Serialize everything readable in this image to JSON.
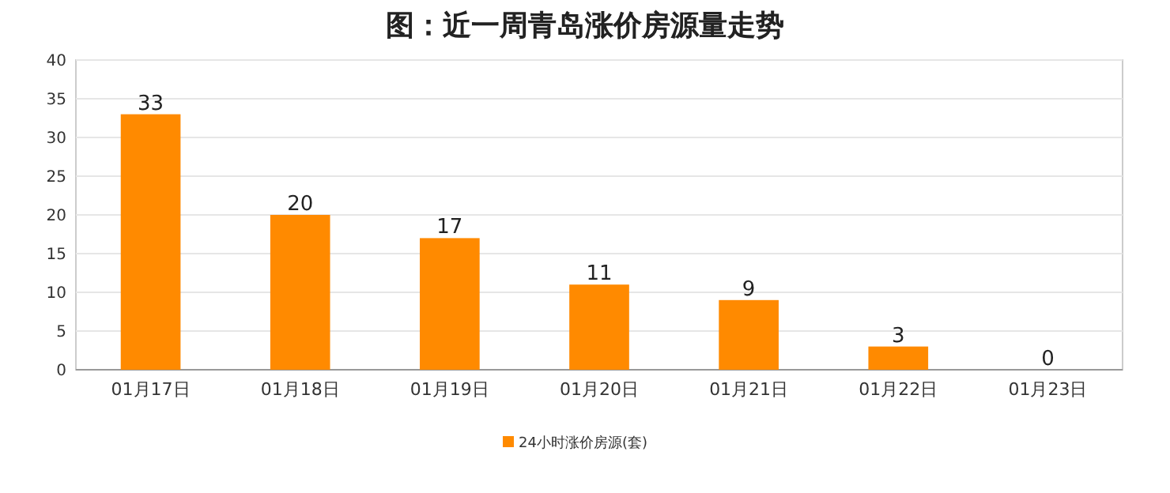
{
  "chart_data": {
    "type": "bar",
    "title": "图：近一周青岛涨价房源量走势",
    "categories": [
      "01月17日",
      "01月18日",
      "01月19日",
      "01月20日",
      "01月21日",
      "01月22日",
      "01月23日"
    ],
    "series": [
      {
        "name": "24小时涨价房源(套)",
        "color": "#ff8a00",
        "values": [
          33,
          20,
          17,
          11,
          9,
          3,
          0
        ]
      }
    ],
    "ylim": [
      0,
      40
    ],
    "yticks": [
      0,
      5,
      10,
      15,
      20,
      25,
      30,
      35,
      40
    ],
    "grid": "y",
    "legend": "bottom",
    "data_labels": true
  }
}
